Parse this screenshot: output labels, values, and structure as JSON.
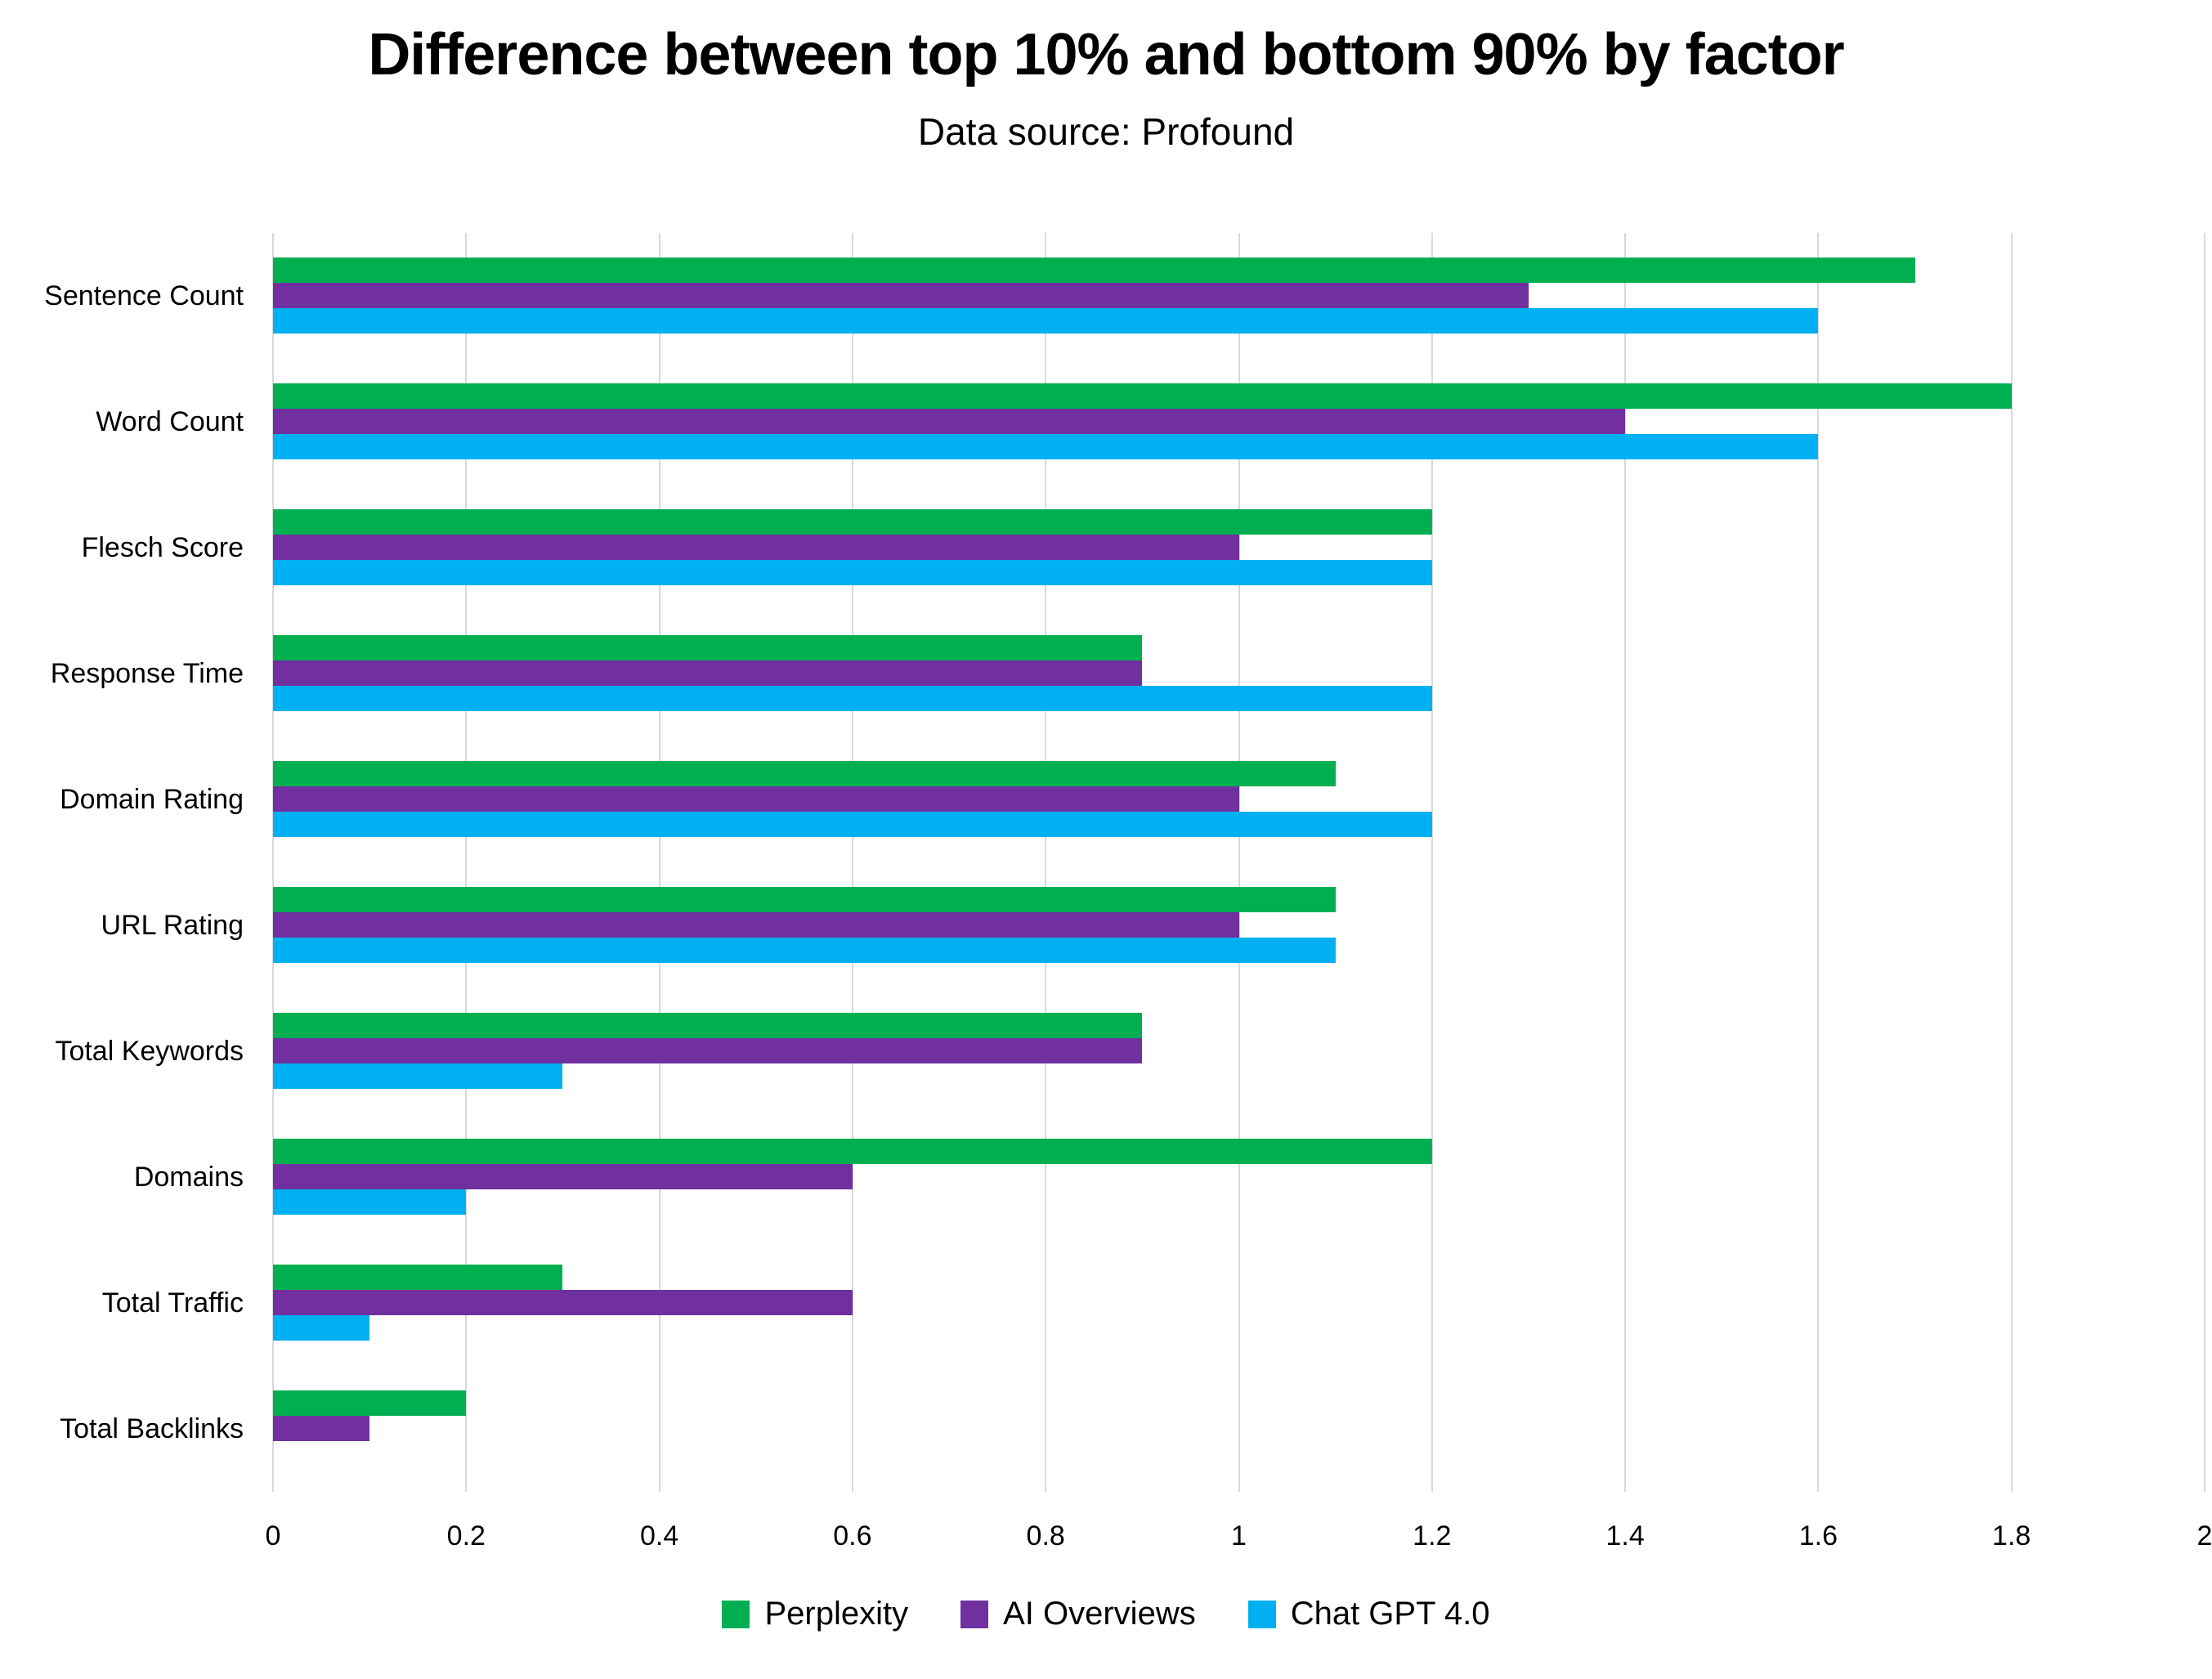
{
  "chart_data": {
    "type": "bar",
    "orientation": "horizontal",
    "title": "Difference between top 10% and bottom 90% by factor",
    "subtitle": "Data source: Profound",
    "categories": [
      "Sentence Count",
      "Word Count",
      "Flesch Score",
      "Response Time",
      "Domain Rating",
      "URL Rating",
      "Total Keywords",
      "Domains",
      "Total Traffic",
      "Total Backlinks"
    ],
    "series": [
      {
        "name": "Perplexity",
        "color": "#00B050",
        "values": [
          1.7,
          1.8,
          1.2,
          0.9,
          1.1,
          1.1,
          0.9,
          1.2,
          0.3,
          0.2
        ]
      },
      {
        "name": "AI Overviews",
        "color": "#7030A0",
        "values": [
          1.3,
          1.4,
          1.0,
          0.9,
          1.0,
          1.0,
          0.9,
          0.6,
          0.6,
          0.1
        ]
      },
      {
        "name": "Chat GPT 4.0",
        "color": "#00B0F0",
        "values": [
          1.6,
          1.6,
          1.2,
          1.2,
          1.2,
          1.1,
          0.3,
          0.2,
          0.1,
          0.0
        ]
      }
    ],
    "x_axis": {
      "min": 0,
      "max": 2,
      "tick_step": 0.2,
      "ticks": [
        "0",
        "0.2",
        "0.4",
        "0.6",
        "0.8",
        "1",
        "1.2",
        "1.4",
        "1.6",
        "1.8",
        "2"
      ]
    },
    "ylabel": "",
    "xlabel": "",
    "grid": true,
    "legend_position": "bottom",
    "colors": {
      "background": "#FFFFFF",
      "text": "#000000",
      "gridline": "#D9D9D9"
    }
  }
}
